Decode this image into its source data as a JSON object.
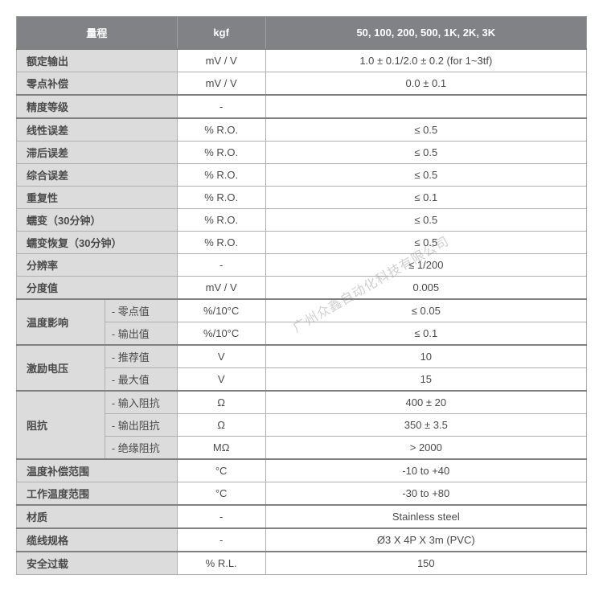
{
  "header": {
    "label": "量程",
    "unit": "kgf",
    "value": "50, 100, 200, 500, 1K, 2K, 3K"
  },
  "watermark": "广州众鑫自动化科技有限公司",
  "rows": [
    {
      "section": true,
      "label": "额定输出",
      "unit": "mV / V",
      "value": "1.0 ± 0.1/2.0 ± 0.2 (for 1~3tf)"
    },
    {
      "label": "零点补偿",
      "unit": "mV / V",
      "value": "0.0 ± 0.1"
    },
    {
      "section": true,
      "label": "精度等级",
      "unit": "-",
      "value": ""
    },
    {
      "section": true,
      "label": "线性误差",
      "unit": "% R.O.",
      "value": "≤ 0.5"
    },
    {
      "label": "滞后误差",
      "unit": "% R.O.",
      "value": "≤ 0.5"
    },
    {
      "label": "综合误差",
      "unit": "% R.O.",
      "value": "≤ 0.5"
    },
    {
      "label": "重复性",
      "unit": "% R.O.",
      "value": "≤ 0.1"
    },
    {
      "label": "蠕变（30分钟）",
      "unit": "% R.O.",
      "value": "≤ 0.5"
    },
    {
      "label": "蠕变恢复（30分钟）",
      "unit": "% R.O.",
      "value": "≤ 0.5"
    },
    {
      "label": "分辨率",
      "unit": "-",
      "value": "≤ 1/200"
    },
    {
      "label": "分度值",
      "unit": "mV / V",
      "value": "0.005"
    },
    {
      "section": true,
      "group": "温度影响",
      "rowspan": 2,
      "sub": "- 零点值",
      "unit": "%/10°C",
      "value": "≤ 0.05"
    },
    {
      "sub": "- 输出值",
      "unit": "%/10°C",
      "value": "≤ 0.1"
    },
    {
      "section": true,
      "group": "激励电压",
      "rowspan": 2,
      "sub": "- 推荐值",
      "unit": "V",
      "value": "10"
    },
    {
      "sub": "- 最大值",
      "unit": "V",
      "value": "15"
    },
    {
      "section": true,
      "group": "阻抗",
      "rowspan": 3,
      "sub": "- 输入阻抗",
      "unit": "Ω",
      "value": "400 ± 20"
    },
    {
      "sub": "- 输出阻抗",
      "unit": "Ω",
      "value": "350 ± 3.5"
    },
    {
      "sub": "- 绝缘阻抗",
      "unit": "MΩ",
      "value": "> 2000"
    },
    {
      "section": true,
      "label": "温度补偿范围",
      "unit": "°C",
      "value": "-10 to +40"
    },
    {
      "label": "工作温度范围",
      "unit": "°C",
      "value": "-30 to +80"
    },
    {
      "section": true,
      "label": "材质",
      "unit": "-",
      "value": "Stainless steel"
    },
    {
      "section": true,
      "label": "缆线规格",
      "unit": "-",
      "value": "Ø3 X 4P X 3m (PVC)"
    },
    {
      "section": true,
      "label": "安全过载",
      "unit": "% R.L.",
      "value": "150"
    }
  ]
}
